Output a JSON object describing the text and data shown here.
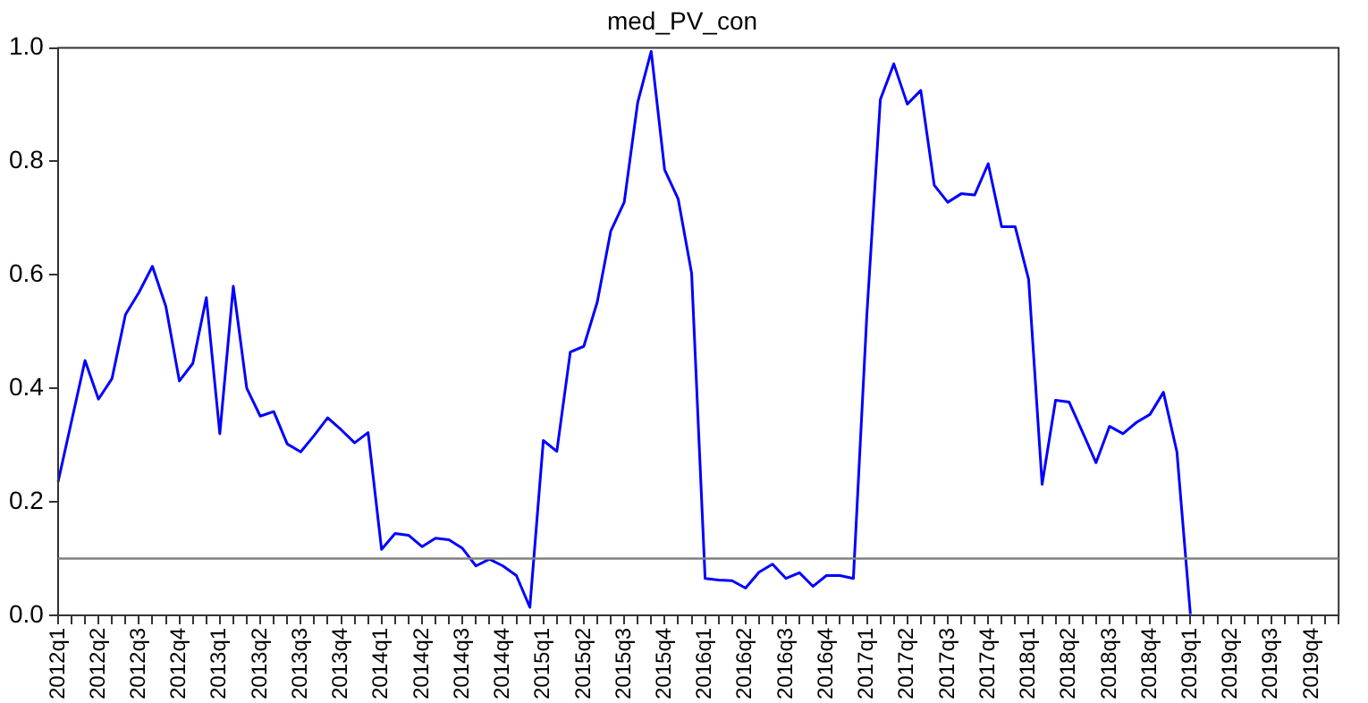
{
  "chart_data": {
    "type": "line",
    "title": "med_PV_con",
    "categories": [
      "2012q1",
      null,
      null,
      "2012q2",
      null,
      null,
      "2012q3",
      null,
      null,
      "2012q4",
      null,
      null,
      "2013q1",
      null,
      null,
      "2013q2",
      null,
      null,
      "2013q3",
      null,
      null,
      "2013q4",
      null,
      null,
      "2014q1",
      null,
      null,
      "2014q2",
      null,
      null,
      "2014q3",
      null,
      null,
      "2014q4",
      null,
      null,
      "2015q1",
      null,
      null,
      "2015q2",
      null,
      null,
      "2015q3",
      null,
      null,
      "2015q4",
      null,
      null,
      "2016q1",
      null,
      null,
      "2016q2",
      null,
      null,
      "2016q3",
      null,
      null,
      "2016q4",
      null,
      null,
      "2017q1",
      null,
      null,
      "2017q2",
      null,
      null,
      "2017q3",
      null,
      null,
      "2017q4",
      null,
      null,
      "2018q1",
      null,
      null,
      "2018q2",
      null,
      null,
      "2018q3",
      null,
      null,
      "2018q4",
      null,
      null,
      "2019q1",
      null,
      null,
      "2019q2",
      null,
      null,
      "2019q3",
      null,
      null,
      "2019q4",
      null,
      null
    ],
    "series": [
      {
        "color": "#0000ff",
        "values": [
          0.235,
          0.342,
          0.449,
          0.381,
          0.417,
          0.53,
          0.569,
          0.615,
          0.544,
          0.413,
          0.444,
          0.56,
          0.32,
          0.58,
          0.4,
          0.351,
          0.359,
          0.302,
          0.288,
          0.317,
          0.348,
          0.327,
          0.304,
          0.322,
          0.116,
          0.144,
          0.141,
          0.121,
          0.136,
          0.133,
          0.118,
          0.087,
          0.099,
          0.087,
          0.07,
          0.014,
          0.308,
          0.289,
          0.464,
          0.474,
          0.552,
          0.677,
          0.728,
          0.904,
          0.994,
          0.785,
          0.734,
          0.603,
          0.065,
          0.062,
          0.061,
          0.048,
          0.076,
          0.09,
          0.065,
          0.075,
          0.051,
          0.07,
          0.07,
          0.065,
          0.53,
          0.909,
          0.972,
          0.901,
          0.925,
          0.758,
          0.728,
          0.743,
          0.741,
          0.796,
          0.685,
          0.685,
          0.592,
          0.231,
          0.379,
          0.376,
          0.323,
          0.269,
          0.333,
          0.32,
          0.34,
          0.354,
          0.393,
          0.288,
          0.002,
          null,
          null,
          null,
          null,
          null,
          null,
          null,
          null,
          null,
          null,
          null
        ]
      }
    ],
    "ylim": [
      0,
      1
    ],
    "yticks": [
      {
        "value": 0,
        "label": "0.0"
      },
      0.2,
      0.4,
      0.6,
      0.8,
      {
        "value": 1,
        "label": "1.0"
      }
    ],
    "ref_lines": [
      {
        "axis": "y",
        "value": 0.1,
        "color": "#808080"
      }
    ],
    "grid": false,
    "legend": false,
    "marker": "none",
    "line_style": "solid"
  }
}
